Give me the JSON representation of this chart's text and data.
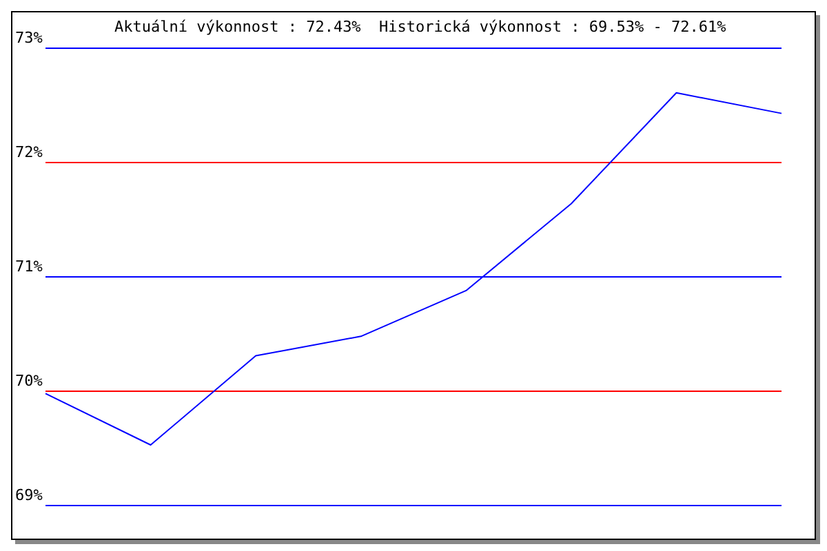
{
  "chart_data": {
    "type": "line",
    "title": "Aktuální výkonnost : 72.43%  Historická výkonnost : 69.53% - 72.61%",
    "categories": [
      null,
      null,
      null,
      null,
      null,
      null,
      null,
      null
    ],
    "series": [
      {
        "color": "#0000ff",
        "values": [
          69.98,
          69.53,
          70.31,
          70.48,
          70.88,
          71.64,
          72.61,
          72.43
        ]
      }
    ],
    "ylim": [
      69,
      73
    ],
    "yticks": [
      {
        "value": 69,
        "label": "69%"
      },
      {
        "value": 70,
        "label": "70%"
      },
      {
        "value": 71,
        "label": "71%"
      },
      {
        "value": 72,
        "label": "72%"
      },
      {
        "value": 73,
        "label": "73%"
      }
    ],
    "marker": "none",
    "line_style": "solid",
    "ref_lines": [
      {
        "axis": "y",
        "value": 69,
        "color": "#0000ff"
      },
      {
        "axis": "y",
        "value": 70,
        "color": "#ff0000"
      },
      {
        "axis": "y",
        "value": 71,
        "color": "#0000ff"
      },
      {
        "axis": "y",
        "value": 72,
        "color": "#ff0000"
      },
      {
        "axis": "y",
        "value": 73,
        "color": "#0000ff"
      }
    ]
  }
}
